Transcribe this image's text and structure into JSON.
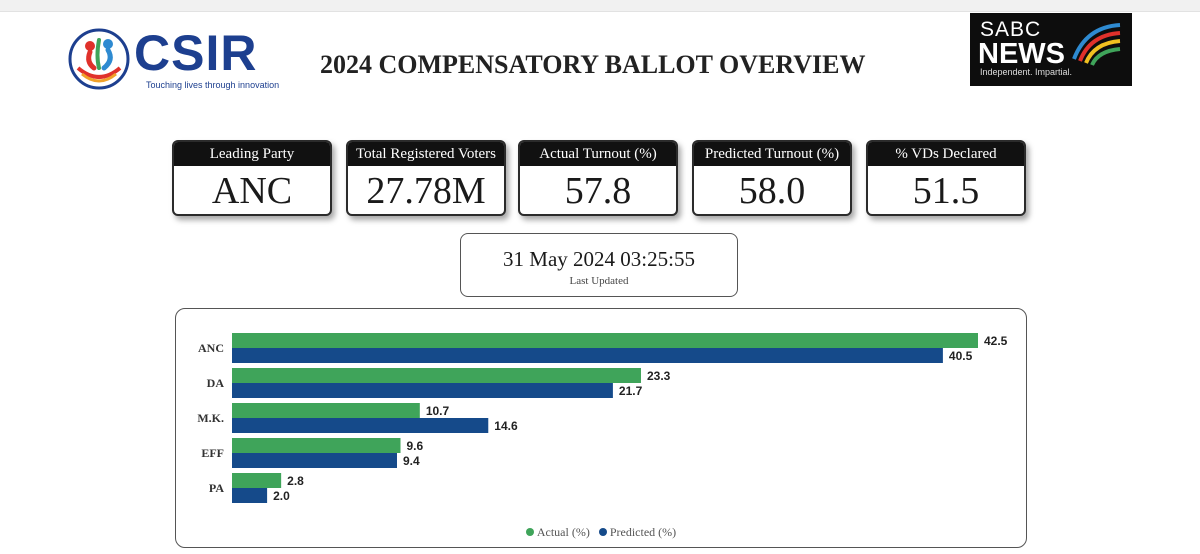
{
  "header": {
    "csir_name": "CSIR",
    "csir_tagline": "Touching lives through innovation",
    "title": "2024 COMPENSATORY BALLOT OVERVIEW",
    "sabc_top": "SABC",
    "sabc_main": "NEWS",
    "sabc_tagline": "Independent. Impartial."
  },
  "kpis": [
    {
      "label": "Leading Party",
      "value": "ANC"
    },
    {
      "label": "Total Registered Voters",
      "value": "27.78M"
    },
    {
      "label": "Actual Turnout (%)",
      "value": "57.8"
    },
    {
      "label": "Predicted Turnout (%)",
      "value": "58.0"
    },
    {
      "label": "% VDs Declared",
      "value": "51.5"
    }
  ],
  "last_updated": {
    "time": "31 May 2024 03:25:55",
    "label": "Last Updated"
  },
  "colors": {
    "actual": "#3fa45a",
    "predicted": "#154a8a",
    "csir_blue": "#1d3f8f"
  },
  "chart_data": {
    "type": "bar",
    "orientation": "horizontal",
    "categories": [
      "ANC",
      "DA",
      "M.K.",
      "EFF",
      "PA"
    ],
    "series": [
      {
        "name": "Actual (%)",
        "values": [
          42.5,
          23.3,
          10.7,
          9.6,
          2.8
        ]
      },
      {
        "name": "Predicted (%)",
        "values": [
          40.5,
          21.7,
          14.6,
          9.4,
          2.0
        ]
      }
    ],
    "xlim": [
      0,
      42.5
    ],
    "grid": false,
    "legend_position": "bottom-center",
    "data_labels": true
  }
}
